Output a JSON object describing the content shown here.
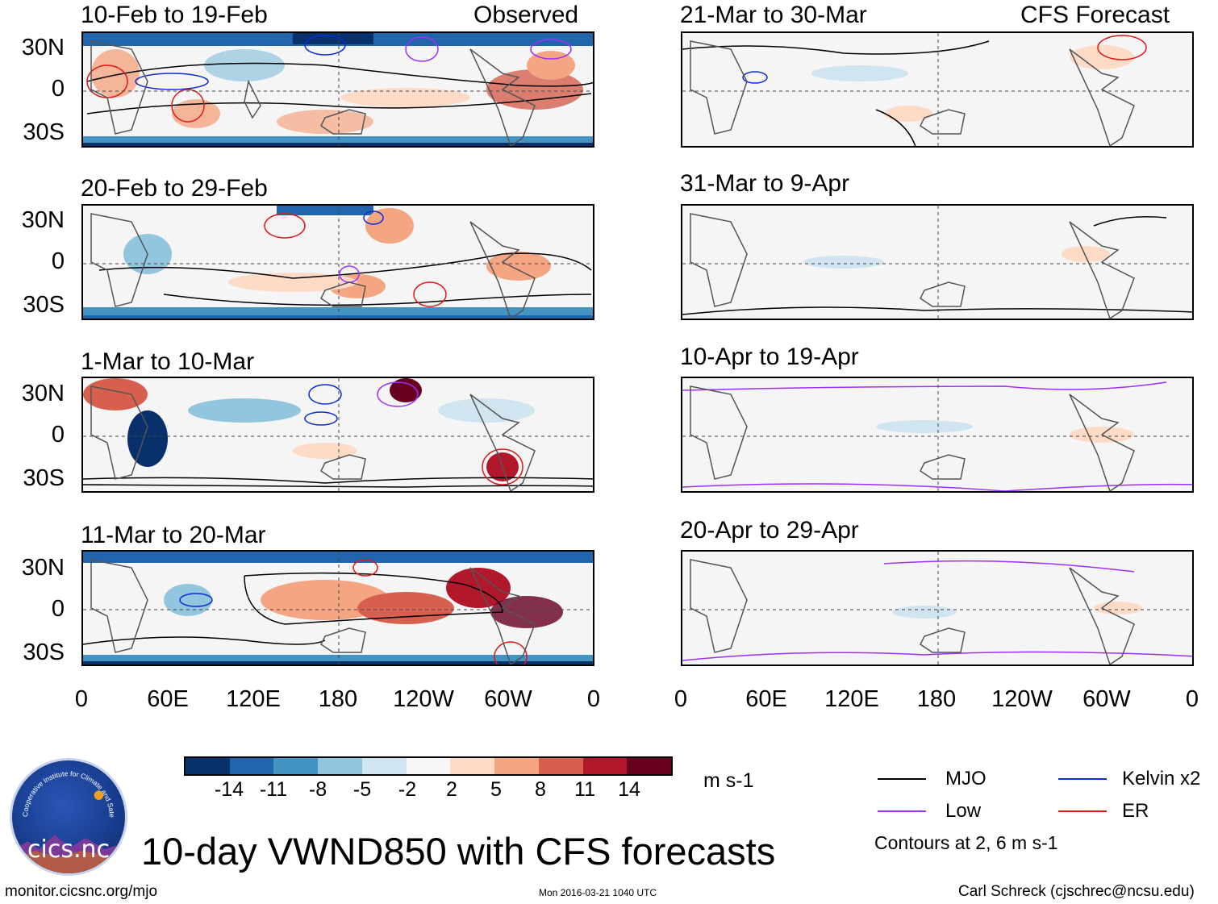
{
  "colors": {
    "mjo": "#000000",
    "low": "#9b30ff",
    "kelvin": "#0b2bd6",
    "er": "#e01818",
    "colorbar": [
      "#08306b",
      "#2166ac",
      "#4393c3",
      "#92c5de",
      "#d1e5f0",
      "#f7f7f7",
      "#fddbc7",
      "#f4a582",
      "#d6604d",
      "#b2182b",
      "#67001f"
    ]
  },
  "panels": {
    "observed": [
      {
        "title": "10-Feb to 19-Feb",
        "subtitle": "Observed"
      },
      {
        "title": "20-Feb to 29-Feb"
      },
      {
        "title": "1-Mar to 10-Mar"
      },
      {
        "title": "11-Mar to 20-Mar"
      }
    ],
    "forecast": [
      {
        "title": "21-Mar to 30-Mar",
        "subtitle": "CFS Forecast"
      },
      {
        "title": "31-Mar to 9-Apr"
      },
      {
        "title": "10-Apr to 19-Apr"
      },
      {
        "title": "20-Apr to 29-Apr"
      }
    ]
  },
  "axes": {
    "lat_labels": [
      "30N",
      "0",
      "30S"
    ],
    "lon_labels": [
      "0",
      "60E",
      "120E",
      "180",
      "120W",
      "60W",
      "0"
    ]
  },
  "colorbar": {
    "labels": [
      "-14",
      "-11",
      "-8",
      "-5",
      "-2",
      "2",
      "5",
      "8",
      "11",
      "14"
    ],
    "units": "m s-1"
  },
  "legend": {
    "mjo": "MJO",
    "kelvin": "Kelvin x2",
    "low": "Low",
    "er": "ER",
    "note": "Contours at 2, 6 m s-1"
  },
  "main_title": "10-day VWND850 with CFS forecasts",
  "logo": {
    "text": "cics.nc",
    "ring_text": "Cooperative Institute for Climate and Satellites"
  },
  "footer": {
    "left": "monitor.cicsnc.org/mjo",
    "center": "Mon 2016-03-21 1040 UTC",
    "right": "Carl Schreck (cjschrec@ncsu.edu)"
  }
}
